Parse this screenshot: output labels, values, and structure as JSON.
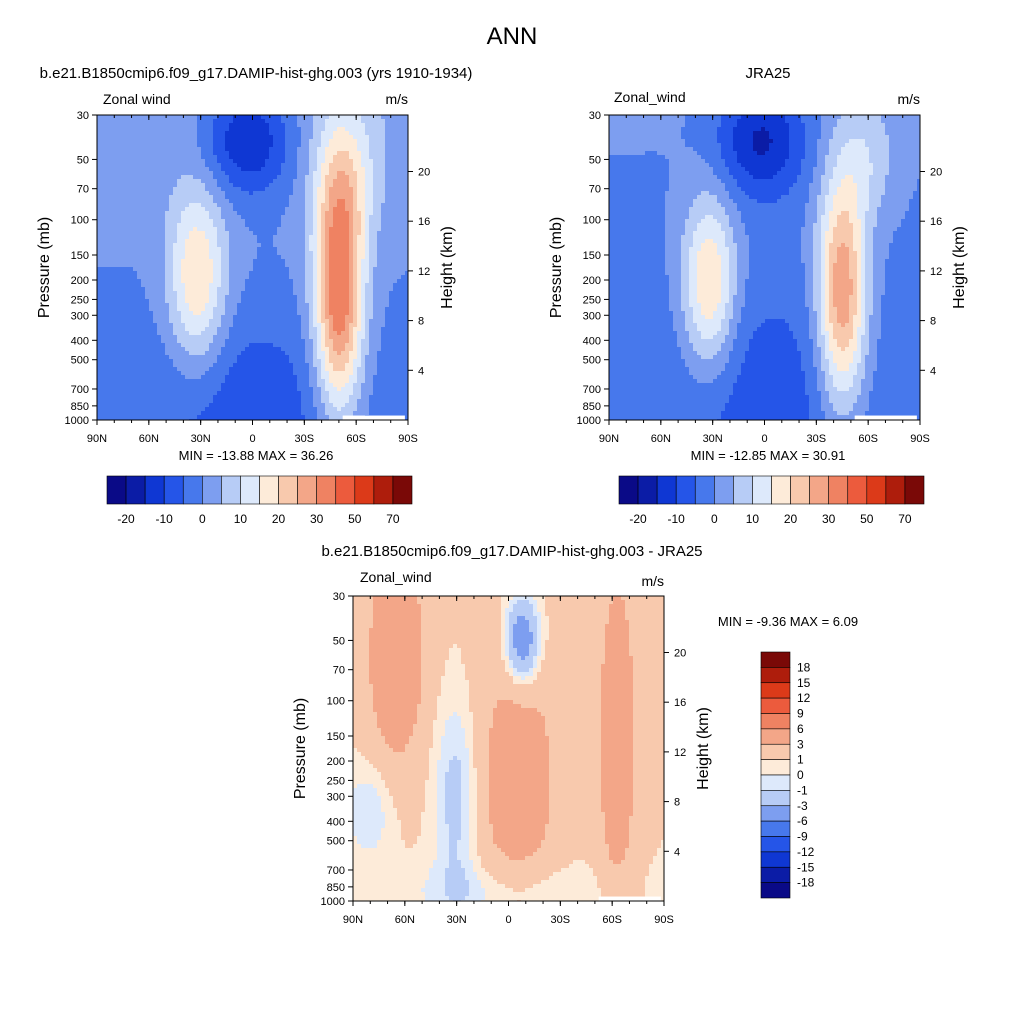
{
  "figure": {
    "title": "ANN"
  },
  "scale_colors": {
    "full": [
      "#0a0a87",
      "#0b1ca6",
      "#0f37d3",
      "#2555e8",
      "#4778ec",
      "#7d9ef0",
      "#b7ccf6",
      "#dde9fb",
      "#fdebd9",
      "#f8c9ad",
      "#f3a688",
      "#ef8262",
      "#ec5b3d",
      "#dc3a19",
      "#ae1d0c",
      "#7a0907"
    ],
    "diff": [
      "#0a0a87",
      "#0b1ca6",
      "#0f37d3",
      "#2555e8",
      "#4778ec",
      "#7d9ef0",
      "#b7ccf6",
      "#dde9fb",
      "#fdebd9",
      "#f8c9ad",
      "#f3a688",
      "#ef8262",
      "#ec5b3d",
      "#dc3a19",
      "#ae1d0c",
      "#7a0907"
    ]
  },
  "chart_data": [
    {
      "type": "heatmap",
      "title": "b.e21.B1850cmip6.f09_g17.DAMIP-hist-ghg.003 (yrs 1910-1934)",
      "variable_label": "Zonal wind",
      "units": "m/s",
      "ylabel": "Pressure (mb)",
      "ylabel_right": "Height (km)",
      "xlabel": "",
      "x_ticks": [
        "90N",
        "60N",
        "30N",
        "0",
        "30S",
        "60S",
        "90S"
      ],
      "y_ticks": [
        "30",
        "50",
        "70",
        "100",
        "150",
        "200",
        "250",
        "300",
        "400",
        "500",
        "700",
        "850",
        "1000"
      ],
      "y_ticks_right": [
        "20",
        "16",
        "12",
        "8",
        "4"
      ],
      "y_scale": "log",
      "stats": "MIN = -13.88  MAX =  36.26",
      "colorbar": {
        "orientation": "horizontal",
        "labels": [
          "-20",
          "-10",
          "0",
          "10",
          "20",
          "30",
          "50",
          "70"
        ]
      },
      "features": {
        "nh_jet": {
          "lat": 35,
          "p": 200,
          "max": 20
        },
        "sh_jet": {
          "lat": -50,
          "p": 200,
          "max": 36.26
        },
        "equatorial_easterly": {
          "lat": 0,
          "p": 40,
          "min": -13.88
        }
      }
    },
    {
      "type": "heatmap",
      "title": "JRA25",
      "variable_label": "Zonal_wind",
      "units": "m/s",
      "ylabel": "Pressure (mb)",
      "ylabel_right": "Height (km)",
      "xlabel": "",
      "x_ticks": [
        "90N",
        "60N",
        "30N",
        "0",
        "30S",
        "60S",
        "90S"
      ],
      "y_ticks": [
        "30",
        "50",
        "70",
        "100",
        "150",
        "200",
        "250",
        "300",
        "400",
        "500",
        "700",
        "850",
        "1000"
      ],
      "y_ticks_right": [
        "20",
        "16",
        "12",
        "8",
        "4"
      ],
      "y_scale": "log",
      "stats": "MIN = -12.85  MAX =  30.91",
      "colorbar": {
        "orientation": "horizontal",
        "labels": [
          "-20",
          "-10",
          "0",
          "10",
          "20",
          "30",
          "50",
          "70"
        ]
      },
      "features": {
        "nh_jet": {
          "lat": 32,
          "p": 200,
          "max": 22
        },
        "sh_jet": {
          "lat": -45,
          "p": 200,
          "max": 30.91
        },
        "equatorial_easterly": {
          "lat": 5,
          "p": 40,
          "min": -12.85
        }
      }
    },
    {
      "type": "heatmap",
      "title": "b.e21.B1850cmip6.f09_g17.DAMIP-hist-ghg.003 - JRA25",
      "variable_label": "Zonal_wind",
      "units": "m/s",
      "ylabel": "Pressure (mb)",
      "ylabel_right": "Height (km)",
      "xlabel": "",
      "x_ticks": [
        "90N",
        "60N",
        "30N",
        "0",
        "30S",
        "60S",
        "90S"
      ],
      "y_ticks": [
        "30",
        "50",
        "70",
        "100",
        "150",
        "200",
        "250",
        "300",
        "400",
        "500",
        "700",
        "850",
        "1000"
      ],
      "y_ticks_right": [
        "20",
        "16",
        "12",
        "8",
        "4"
      ],
      "y_scale": "log",
      "stats": "MIN =  -9.36  MAX =   6.09",
      "colorbar": {
        "orientation": "vertical",
        "labels": [
          "18",
          "15",
          "12",
          "9",
          "6",
          "3",
          "1",
          "0",
          "-1",
          "-3",
          "-6",
          "-9",
          "-12",
          "-15",
          "-18"
        ]
      }
    }
  ]
}
